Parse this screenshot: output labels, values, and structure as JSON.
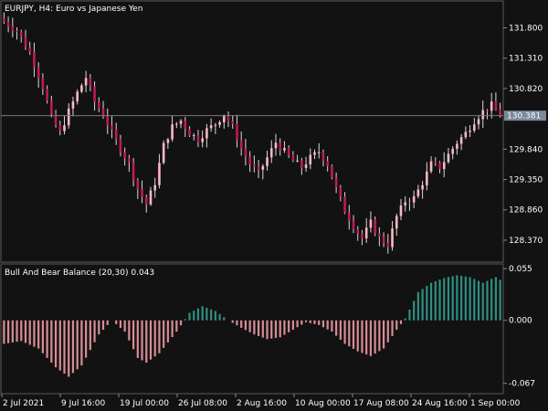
{
  "window": {
    "title": "EURJPY, H4:  Euro vs Japanese Yen",
    "indicator_title": "Bull And Bear Balance (20,30) 0.043"
  },
  "colors": {
    "background": "#121212",
    "grid": "#3a3a3a",
    "candle_up": "#ffb6c1",
    "candle_down": "#c2185b",
    "wick": "#d9d9d9",
    "price_line": "#7a7a7a",
    "price_tag_bg": "#7a8a9a",
    "hist_positive": "#2f8f83",
    "hist_negative": "#d98c96"
  },
  "price_axis": {
    "labels": [
      "131.800",
      "131.310",
      "130.820",
      "129.840",
      "129.350",
      "128.860",
      "128.370"
    ],
    "values": [
      131.8,
      131.31,
      130.82,
      129.84,
      129.35,
      128.86,
      128.37
    ],
    "ylim": [
      128.03,
      132.22
    ],
    "current_price_label": "130.381",
    "current_price": 130.381
  },
  "indicator_axis": {
    "labels": [
      "0.055",
      "0.000",
      "-0.067"
    ],
    "values": [
      0.055,
      0.0,
      -0.067
    ],
    "ylim": [
      -0.077,
      0.059
    ],
    "current_value": 0.043
  },
  "time_axis": {
    "labels": [
      "2 Jul 2021",
      "9 Jul 16:00",
      "19 Jul 00:00",
      "26 Jul 08:00",
      "2 Aug 16:00",
      "10 Aug 00:00",
      "17 Aug 08:00",
      "24 Aug 16:00",
      "1 Sep 00:00"
    ]
  },
  "chart_data": [
    {
      "type": "candlestick",
      "symbol": "EURJPY",
      "timeframe": "H4",
      "x_labels": [
        "2 Jul 2021",
        "9 Jul 16:00",
        "19 Jul 00:00",
        "26 Jul 08:00",
        "2 Aug 16:00",
        "10 Aug 00:00",
        "17 Aug 08:00",
        "24 Aug 16:00",
        "1 Sep 00:00"
      ],
      "close_path": [
        [
          0,
          131.9
        ],
        [
          3,
          131.75
        ],
        [
          6,
          131.4
        ],
        [
          9,
          130.85
        ],
        [
          11,
          130.35
        ],
        [
          13,
          130.1
        ],
        [
          15,
          130.45
        ],
        [
          17,
          130.75
        ],
        [
          19,
          131.0
        ],
        [
          21,
          130.6
        ],
        [
          23,
          130.4
        ],
        [
          25,
          130.1
        ],
        [
          27,
          129.85
        ],
        [
          29,
          129.6
        ],
        [
          31,
          129.2
        ],
        [
          33,
          128.95
        ],
        [
          35,
          129.3
        ],
        [
          37,
          129.9
        ],
        [
          39,
          130.2
        ],
        [
          41,
          130.3
        ],
        [
          43,
          130.1
        ],
        [
          45,
          130.0
        ],
        [
          47,
          130.15
        ],
        [
          49,
          130.25
        ],
        [
          51,
          130.4
        ],
        [
          53,
          130.2
        ],
        [
          55,
          129.85
        ],
        [
          57,
          129.6
        ],
        [
          59,
          129.45
        ],
        [
          61,
          129.7
        ],
        [
          63,
          129.95
        ],
        [
          65,
          129.8
        ],
        [
          67,
          129.65
        ],
        [
          69,
          129.55
        ],
        [
          71,
          129.7
        ],
        [
          73,
          129.8
        ],
        [
          75,
          129.6
        ],
        [
          77,
          129.2
        ],
        [
          79,
          128.85
        ],
        [
          81,
          128.6
        ],
        [
          83,
          128.4
        ],
        [
          85,
          128.65
        ],
        [
          87,
          128.4
        ],
        [
          89,
          128.3
        ],
        [
          91,
          128.75
        ],
        [
          93,
          129.0
        ],
        [
          95,
          129.05
        ],
        [
          97,
          129.3
        ],
        [
          99,
          129.6
        ],
        [
          101,
          129.55
        ],
        [
          103,
          129.75
        ],
        [
          105,
          129.95
        ],
        [
          107,
          130.1
        ],
        [
          109,
          130.3
        ],
        [
          111,
          130.45
        ],
        [
          113,
          130.55
        ],
        [
          115,
          130.4
        ]
      ]
    },
    {
      "type": "histogram",
      "name": "Bull And Bear Balance (20,30)",
      "control_points": [
        [
          0,
          -0.025
        ],
        [
          4,
          -0.022
        ],
        [
          8,
          -0.03
        ],
        [
          12,
          -0.05
        ],
        [
          15,
          -0.06
        ],
        [
          18,
          -0.048
        ],
        [
          22,
          -0.015
        ],
        [
          25,
          0.0
        ],
        [
          28,
          -0.012
        ],
        [
          31,
          -0.04
        ],
        [
          33,
          -0.045
        ],
        [
          36,
          -0.035
        ],
        [
          40,
          -0.012
        ],
        [
          43,
          0.008
        ],
        [
          46,
          0.015
        ],
        [
          49,
          0.01
        ],
        [
          52,
          0.0
        ],
        [
          55,
          -0.008
        ],
        [
          58,
          -0.015
        ],
        [
          61,
          -0.02
        ],
        [
          64,
          -0.018
        ],
        [
          67,
          -0.01
        ],
        [
          70,
          -0.002
        ],
        [
          73,
          -0.005
        ],
        [
          76,
          -0.012
        ],
        [
          79,
          -0.025
        ],
        [
          82,
          -0.033
        ],
        [
          85,
          -0.038
        ],
        [
          88,
          -0.03
        ],
        [
          91,
          -0.01
        ],
        [
          93,
          0.002
        ],
        [
          96,
          0.03
        ],
        [
          99,
          0.04
        ],
        [
          102,
          0.045
        ],
        [
          105,
          0.048
        ],
        [
          108,
          0.046
        ],
        [
          111,
          0.04
        ],
        [
          114,
          0.046
        ],
        [
          115,
          0.043
        ]
      ]
    }
  ]
}
